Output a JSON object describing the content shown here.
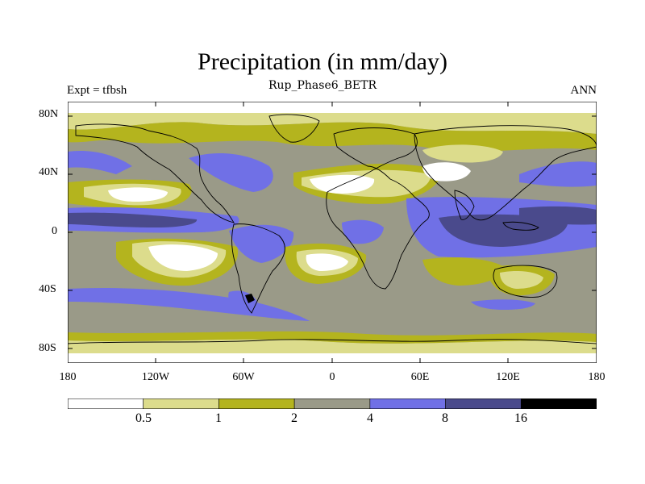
{
  "title": "Precipitation (in mm/day)",
  "subtitle": "Rup_Phase6_BETR",
  "left_label": "Expt = tfbsh",
  "right_label": "ANN",
  "lat_ticks": [
    "80N",
    "40N",
    "0",
    "40S",
    "80S"
  ],
  "lon_ticks": [
    "180",
    "120W",
    "60W",
    "0",
    "60E",
    "120E",
    "180"
  ],
  "colorbar": {
    "labels": [
      "0.5",
      "1",
      "2",
      "4",
      "8",
      "16"
    ],
    "colors": [
      "#ffffff",
      "#dcdc8c",
      "#b4b41e",
      "#9a9a88",
      "#7070e6",
      "#4a4a8c",
      "#000000"
    ]
  },
  "map_colors": {
    "white": "#ffffff",
    "light_yellow": "#dcdc8c",
    "olive": "#b4b41e",
    "gray": "#9a9a88",
    "blue": "#7070e6",
    "dark_blue": "#4a4a8c",
    "black": "#000000"
  }
}
